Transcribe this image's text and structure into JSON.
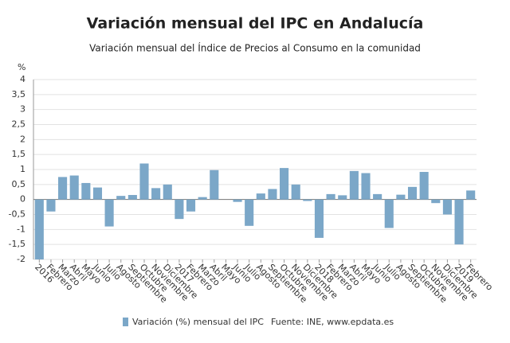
{
  "chart_data": {
    "type": "bar",
    "title": "Variación mensual del IPC en Andalucía",
    "subtitle": "Variación mensual del Índice de Precios al Consumo en la comunidad",
    "y_label": "%",
    "source": "Fuente: INE, www.epdata.es",
    "categories": [
      "2016",
      "Febrero",
      "Marzo",
      "Abril",
      "Mayo",
      "Junio",
      "Julio",
      "Agosto",
      "Septiembre",
      "Octubre",
      "Noviembre",
      "Diciembre",
      "2017",
      "Febrero",
      "Marzo",
      "Abril",
      "Mayo",
      "Junio",
      "Julio",
      "Agosto",
      "Septiembre",
      "Octubre",
      "Noviembre",
      "Diciembre",
      "2018",
      "Febrero",
      "Marzo",
      "Abril",
      "Mayo",
      "Junio",
      "Julio",
      "Agosto",
      "Septiembre",
      "Octubre",
      "Noviembre",
      "Diciembre",
      "2019",
      "Febrero"
    ],
    "series": [
      {
        "name": "Variación (%) mensual del IPC",
        "color": "#7ba7c8",
        "values": [
          -2.0,
          -0.4,
          0.75,
          0.8,
          0.55,
          0.4,
          -0.9,
          0.12,
          0.15,
          1.2,
          0.38,
          0.5,
          -0.65,
          -0.4,
          0.08,
          0.98,
          0,
          -0.08,
          -0.88,
          0.2,
          0.35,
          1.05,
          0.5,
          -0.05,
          -1.28,
          0.18,
          0.14,
          0.95,
          0.88,
          0.18,
          -0.95,
          0.16,
          0.42,
          0.92,
          -0.12,
          -0.5,
          -1.5,
          0.3
        ]
      }
    ],
    "ylim": [
      -2,
      4
    ],
    "yticks": [
      {
        "value": -2,
        "label": "-2"
      },
      {
        "value": -1.5,
        "label": "-1,5"
      },
      {
        "value": -1,
        "label": "-1"
      },
      {
        "value": -0.5,
        "label": "-0,5"
      },
      0,
      {
        "value": 0.5,
        "label": "0,5"
      },
      1,
      {
        "value": 1.5,
        "label": "1,5"
      },
      2,
      {
        "value": 2.5,
        "label": "2,5"
      },
      3,
      {
        "value": 3.5,
        "label": "3,5"
      },
      4
    ],
    "grid": true
  }
}
